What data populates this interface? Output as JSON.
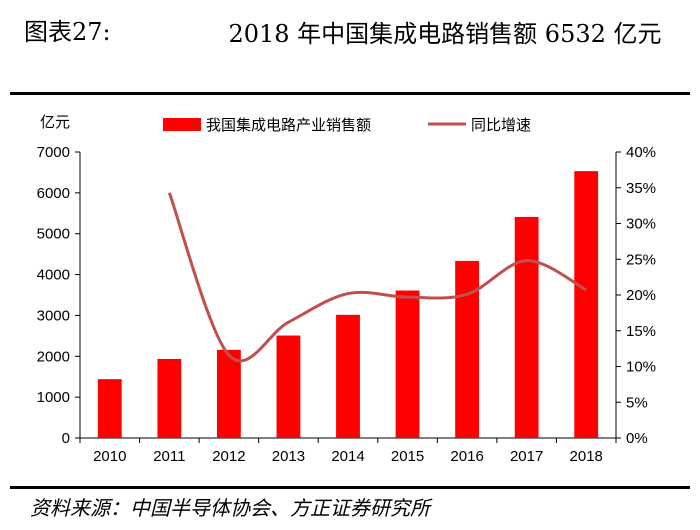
{
  "figure": {
    "label": "图表27:",
    "title": "2018 年中国集成电路销售额 6532 亿元",
    "source": "资料来源：中国半导体协会、方正证券研究所"
  },
  "colors": {
    "bar": "#ff0000",
    "line": "#c0504d"
  },
  "chart_data": {
    "type": "bar+line",
    "categories": [
      "2010",
      "2011",
      "2012",
      "2013",
      "2014",
      "2015",
      "2016",
      "2017",
      "2018"
    ],
    "series": [
      {
        "name": "我国集成电路产业销售额",
        "type": "bar",
        "axis": "left",
        "values": [
          1440,
          1934,
          2158,
          2508,
          3015,
          3609,
          4335,
          5411,
          6532
        ]
      },
      {
        "name": "同比增速",
        "type": "line",
        "axis": "right",
        "values": [
          null,
          34.3,
          11.6,
          16.2,
          20.2,
          19.7,
          20.1,
          24.8,
          20.7
        ]
      }
    ],
    "ylabel": "亿元",
    "ylim": [
      0,
      7000
    ],
    "y_ticks": [
      "0",
      "1000",
      "2000",
      "3000",
      "4000",
      "5000",
      "6000",
      "7000"
    ],
    "y2lim": [
      0,
      40
    ],
    "y2_ticks": [
      "0%",
      "5%",
      "10%",
      "15%",
      "20%",
      "25%",
      "30%",
      "35%",
      "40%"
    ],
    "legend_position": "top-center",
    "grid": false
  }
}
